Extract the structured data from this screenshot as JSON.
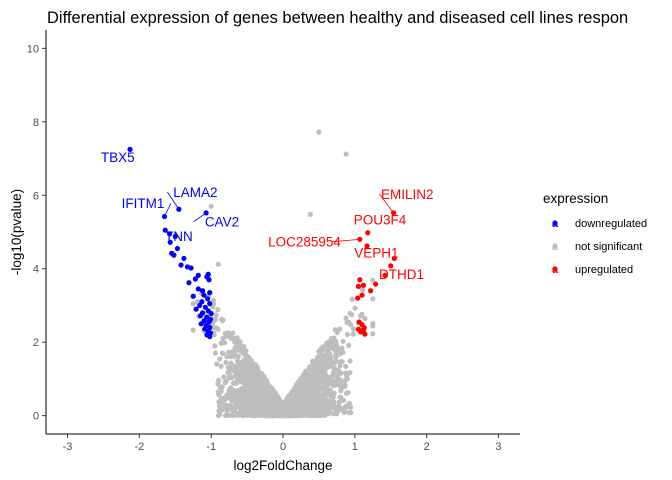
{
  "chart_data": {
    "type": "scatter",
    "title": "Differential expression of genes between healthy and diseased cell lines respon",
    "xlabel": "log2FoldChange",
    "ylabel": "-log10(pvalue)",
    "xlim": [
      -3.3,
      3.3
    ],
    "ylim": [
      -0.5,
      10.5
    ],
    "x_ticks": [
      -3,
      -2,
      -1,
      0,
      1,
      2,
      3
    ],
    "y_ticks": [
      0,
      2,
      4,
      6,
      8,
      10
    ],
    "grid": false,
    "legend": {
      "title": "expression",
      "position": "right",
      "entries": [
        {
          "label": "downregulated",
          "color": "#0000ff",
          "key_glyph": "a"
        },
        {
          "label": "not significant",
          "color": "#bebebe",
          "key_glyph": "a"
        },
        {
          "label": "upregulated",
          "color": "#ff0000",
          "key_glyph": "a"
        }
      ]
    },
    "series": [
      {
        "name": "downregulated",
        "color": "#0000ff",
        "points": [
          [
            -2.13,
            7.25
          ],
          [
            -1.45,
            5.62
          ],
          [
            -1.07,
            5.52
          ],
          [
            -1.65,
            5.42
          ],
          [
            -1.64,
            5.05
          ],
          [
            -1.58,
            4.95
          ],
          [
            -1.5,
            4.88
          ],
          [
            -1.57,
            4.72
          ],
          [
            -1.47,
            4.55
          ],
          [
            -1.55,
            4.42
          ],
          [
            -1.52,
            4.37
          ],
          [
            -1.38,
            4.28
          ],
          [
            -1.42,
            4.1
          ],
          [
            -1.33,
            4.05
          ],
          [
            -1.28,
            4.02
          ],
          [
            -1.04,
            3.85
          ],
          [
            -1.18,
            3.82
          ],
          [
            -1.06,
            3.78
          ],
          [
            -1.22,
            3.72
          ],
          [
            -1.03,
            3.7
          ],
          [
            -1.31,
            3.62
          ],
          [
            -1.18,
            3.45
          ],
          [
            -1.12,
            3.4
          ],
          [
            -1.02,
            3.35
          ],
          [
            -1.1,
            3.28
          ],
          [
            -1.25,
            3.25
          ],
          [
            -1.05,
            3.18
          ],
          [
            -1.13,
            3.1
          ],
          [
            -1.02,
            3.05
          ],
          [
            -1.16,
            3.0
          ],
          [
            -1.08,
            2.95
          ],
          [
            -1.21,
            2.9
          ],
          [
            -1.04,
            2.85
          ],
          [
            -1.12,
            2.8
          ],
          [
            -1.0,
            2.78
          ],
          [
            -1.15,
            2.72
          ],
          [
            -1.06,
            2.68
          ],
          [
            -1.01,
            2.62
          ],
          [
            -1.1,
            2.58
          ],
          [
            -1.03,
            2.55
          ],
          [
            -1.14,
            2.5
          ],
          [
            -1.07,
            2.45
          ],
          [
            -1.02,
            2.4
          ],
          [
            -1.09,
            2.36
          ],
          [
            -1.04,
            2.3
          ],
          [
            -1.01,
            2.25
          ],
          [
            -1.06,
            2.2
          ],
          [
            -1.02,
            2.15
          ]
        ]
      },
      {
        "name": "upregulated",
        "color": "#ff0000",
        "points": [
          [
            1.54,
            5.52
          ],
          [
            1.18,
            4.98
          ],
          [
            1.07,
            4.8
          ],
          [
            1.17,
            4.62
          ],
          [
            1.55,
            4.28
          ],
          [
            1.5,
            4.08
          ],
          [
            1.42,
            3.82
          ],
          [
            1.07,
            3.7
          ],
          [
            1.12,
            3.55
          ],
          [
            1.05,
            3.52
          ],
          [
            1.29,
            3.58
          ],
          [
            1.22,
            3.4
          ],
          [
            1.1,
            3.28
          ],
          [
            1.04,
            3.2
          ],
          [
            1.06,
            2.55
          ],
          [
            1.1,
            2.48
          ],
          [
            1.13,
            2.4
          ],
          [
            1.05,
            2.35
          ],
          [
            1.12,
            2.33
          ],
          [
            1.08,
            2.28
          ],
          [
            1.14,
            2.22
          ]
        ]
      },
      {
        "name": "not significant",
        "color": "#bebebe",
        "outliers": [
          [
            0.5,
            7.72
          ],
          [
            0.88,
            7.12
          ],
          [
            -1.0,
            5.7
          ],
          [
            0.38,
            5.48
          ],
          [
            -0.9,
            4.12
          ]
        ]
      }
    ],
    "annotations": [
      {
        "text": "TBX5",
        "x": -2.3,
        "y": 6.9,
        "color": "#0000ff",
        "point": [
          -2.13,
          7.25
        ]
      },
      {
        "text": "IFITM1",
        "x": -1.95,
        "y": 5.65,
        "color": "#0000ff",
        "point": [
          -1.65,
          5.42
        ]
      },
      {
        "text": "LAMA2",
        "x": -1.22,
        "y": 5.95,
        "color": "#0000ff",
        "point": [
          -1.45,
          5.62
        ]
      },
      {
        "text": "CAV2",
        "x": -0.85,
        "y": 5.15,
        "color": "#0000ff",
        "point": [
          -1.07,
          5.52
        ]
      },
      {
        "text": "TNN",
        "x": -1.45,
        "y": 4.75,
        "color": "#0000ff",
        "point": [
          -1.5,
          4.88
        ]
      },
      {
        "text": "EMILIN2",
        "x": 1.73,
        "y": 5.9,
        "color": "#ff0000",
        "point": [
          1.54,
          5.52
        ]
      },
      {
        "text": "POU3F4",
        "x": 1.35,
        "y": 5.2,
        "color": "#ff0000",
        "point": [
          1.18,
          4.98
        ]
      },
      {
        "text": "LOC285954",
        "x": 0.3,
        "y": 4.6,
        "color": "#ff0000",
        "point": [
          1.07,
          4.8
        ]
      },
      {
        "text": "VEPH1",
        "x": 1.3,
        "y": 4.3,
        "color": "#ff0000",
        "point": [
          1.55,
          4.28
        ]
      },
      {
        "text": "DTHD1",
        "x": 1.65,
        "y": 3.72,
        "color": "#ff0000",
        "point": [
          1.5,
          4.08
        ]
      }
    ]
  }
}
